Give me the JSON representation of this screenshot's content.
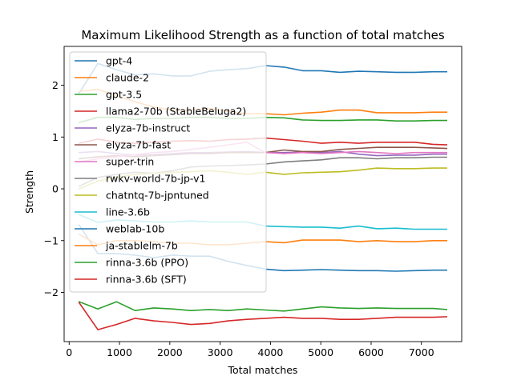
{
  "chart_data": {
    "type": "line",
    "title": "Maximum Likelihood Strength as a function of total matches",
    "xlabel": "Total matches",
    "ylabel": "Strength",
    "xlim": [
      -100,
      7800
    ],
    "ylim": [
      -2.95,
      2.75
    ],
    "xticks": [
      0,
      1000,
      2000,
      3000,
      4000,
      5000,
      6000,
      7000
    ],
    "yticks": [
      -2,
      -1,
      0,
      1,
      2
    ],
    "grid": false,
    "legend_position": "upper-left",
    "x": [
      200,
      570,
      940,
      1310,
      1680,
      2050,
      2420,
      2790,
      3160,
      3530,
      3900,
      4270,
      4640,
      5010,
      5380,
      5750,
      6120,
      6490,
      6860,
      7230,
      7500
    ],
    "series": [
      {
        "name": "gpt-4",
        "color": "#1f77b4",
        "values": [
          1.85,
          2.42,
          2.3,
          2.2,
          2.22,
          2.18,
          2.18,
          2.27,
          2.3,
          2.32,
          2.38,
          2.35,
          2.28,
          2.28,
          2.25,
          2.27,
          2.26,
          2.25,
          2.25,
          2.26,
          2.26
        ]
      },
      {
        "name": "claude-2",
        "color": "#ff7f0e",
        "values": [
          1.88,
          1.92,
          1.8,
          1.68,
          1.58,
          1.52,
          1.52,
          1.55,
          1.5,
          1.45,
          1.45,
          1.43,
          1.46,
          1.48,
          1.52,
          1.52,
          1.47,
          1.47,
          1.47,
          1.48,
          1.48
        ]
      },
      {
        "name": "gpt-3.5",
        "color": "#2ca02c",
        "values": [
          1.28,
          1.38,
          1.38,
          1.34,
          1.36,
          1.36,
          1.38,
          1.38,
          1.36,
          1.36,
          1.38,
          1.37,
          1.33,
          1.32,
          1.32,
          1.33,
          1.33,
          1.31,
          1.31,
          1.32,
          1.32
        ]
      },
      {
        "name": "llama2-70b (StableBeluga2)",
        "color": "#d62728",
        "values": [
          0.88,
          0.96,
          0.9,
          0.88,
          0.9,
          0.92,
          0.93,
          0.92,
          0.95,
          0.96,
          0.98,
          0.95,
          0.92,
          0.88,
          0.9,
          0.88,
          0.9,
          0.9,
          0.9,
          0.86,
          0.85
        ]
      },
      {
        "name": "elyza-7b-instruct",
        "color": "#9467bd",
        "values": [
          0.7,
          0.72,
          0.68,
          0.65,
          0.66,
          0.68,
          0.7,
          0.7,
          0.71,
          0.72,
          0.7,
          0.7,
          0.71,
          0.7,
          0.72,
          0.67,
          0.64,
          0.65,
          0.65,
          0.67,
          0.67
        ]
      },
      {
        "name": "elyza-7b-fast",
        "color": "#8c564b",
        "values": [
          0.58,
          0.62,
          0.64,
          0.62,
          0.64,
          0.66,
          0.68,
          0.68,
          0.7,
          0.7,
          0.7,
          0.75,
          0.72,
          0.72,
          0.76,
          0.78,
          0.8,
          0.8,
          0.8,
          0.79,
          0.78
        ]
      },
      {
        "name": "super-trin",
        "color": "#e377c2",
        "values": [
          0.52,
          0.58,
          0.62,
          0.66,
          0.7,
          0.72,
          0.76,
          0.8,
          0.85,
          0.9,
          0.7,
          0.68,
          0.7,
          0.68,
          0.7,
          0.72,
          0.7,
          0.68,
          0.7,
          0.7,
          0.7
        ]
      },
      {
        "name": "rwkv-world-7b-jp-v1",
        "color": "#7f7f7f",
        "values": [
          0.05,
          0.22,
          0.28,
          0.32,
          0.3,
          0.35,
          0.42,
          0.44,
          0.45,
          0.46,
          0.48,
          0.52,
          0.54,
          0.56,
          0.6,
          0.6,
          0.58,
          0.6,
          0.6,
          0.61,
          0.61
        ]
      },
      {
        "name": "chatntq-7b-jpntuned",
        "color": "#bcbd22",
        "values": [
          0.0,
          0.15,
          0.22,
          0.28,
          0.3,
          0.32,
          0.33,
          0.35,
          0.32,
          0.28,
          0.32,
          0.28,
          0.31,
          0.32,
          0.33,
          0.36,
          0.4,
          0.39,
          0.39,
          0.4,
          0.4
        ]
      },
      {
        "name": "line-3.6b",
        "color": "#17becf",
        "values": [
          -0.5,
          -0.65,
          -0.6,
          -0.62,
          -0.64,
          -0.64,
          -0.62,
          -0.64,
          -0.64,
          -0.64,
          -0.72,
          -0.73,
          -0.74,
          -0.74,
          -0.76,
          -0.72,
          -0.77,
          -0.76,
          -0.78,
          -0.78,
          -0.78
        ]
      },
      {
        "name": "weblab-10b",
        "color": "#1f77b4",
        "values": [
          -0.7,
          -1.25,
          -1.25,
          -1.28,
          -1.33,
          -1.28,
          -1.3,
          -1.3,
          -1.4,
          -1.48,
          -1.55,
          -1.58,
          -1.57,
          -1.56,
          -1.57,
          -1.58,
          -1.58,
          -1.59,
          -1.58,
          -1.57,
          -1.57
        ]
      },
      {
        "name": "ja-stablelm-7b",
        "color": "#ff7f0e",
        "values": [
          -0.88,
          -1.08,
          -1.0,
          -1.0,
          -1.02,
          -1.05,
          -1.05,
          -1.08,
          -1.08,
          -1.05,
          -1.02,
          -1.04,
          -0.99,
          -0.99,
          -0.99,
          -1.02,
          -1.0,
          -1.02,
          -1.02,
          -1.0,
          -1.0
        ]
      },
      {
        "name": "rinna-3.6b (PPO)",
        "color": "#2ca02c",
        "values": [
          -2.18,
          -2.32,
          -2.18,
          -2.35,
          -2.3,
          -2.32,
          -2.35,
          -2.33,
          -2.35,
          -2.32,
          -2.34,
          -2.36,
          -2.32,
          -2.28,
          -2.3,
          -2.31,
          -2.3,
          -2.31,
          -2.31,
          -2.31,
          -2.33
        ]
      },
      {
        "name": "rinna-3.6b (SFT)",
        "color": "#d62728",
        "values": [
          -2.2,
          -2.72,
          -2.62,
          -2.5,
          -2.55,
          -2.58,
          -2.62,
          -2.6,
          -2.55,
          -2.52,
          -2.5,
          -2.48,
          -2.5,
          -2.5,
          -2.52,
          -2.52,
          -2.5,
          -2.48,
          -2.48,
          -2.48,
          -2.47
        ]
      }
    ]
  }
}
